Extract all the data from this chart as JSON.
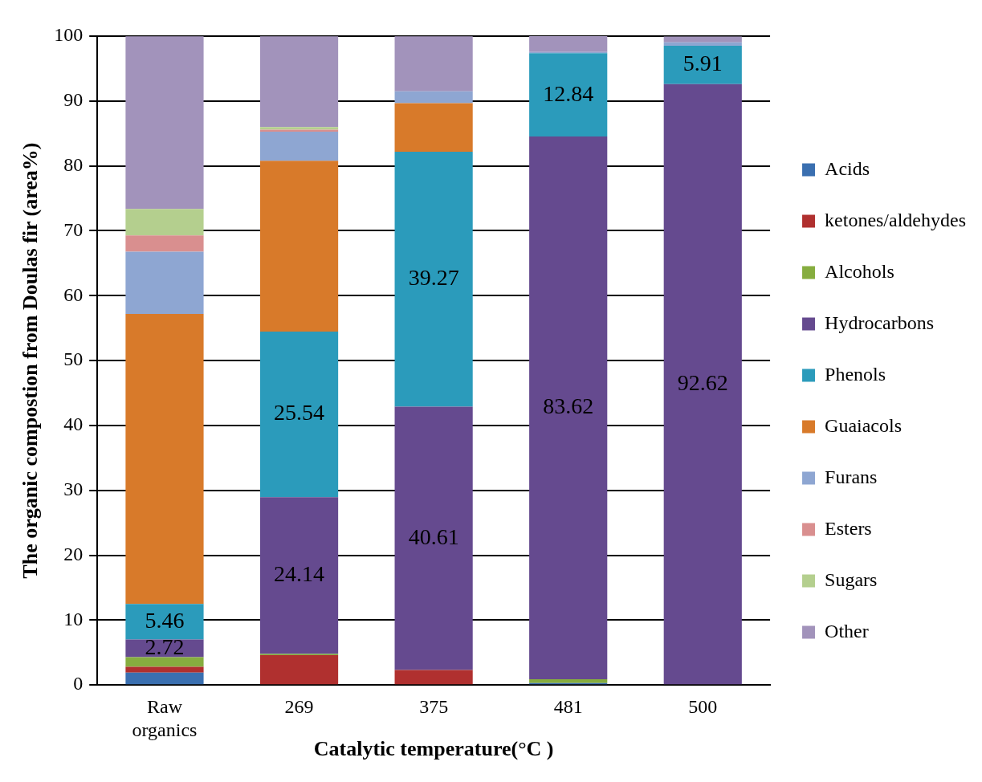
{
  "chart_data": {
    "type": "bar",
    "stacked": true,
    "xlabel": "Catalytic temperature(°C )",
    "ylabel": "The organic compostion from Doulas fir (area%)",
    "categories": [
      "Raw organics",
      "269",
      "375",
      "481",
      "500"
    ],
    "ylim": [
      0,
      100
    ],
    "yticks": [
      0,
      10,
      20,
      30,
      40,
      50,
      60,
      70,
      80,
      90,
      100
    ],
    "grid": "y",
    "legend": "right",
    "series": [
      {
        "name": "Acids",
        "color": "#3a6fb0",
        "values": [
          1.9,
          0,
          0,
          0.3,
          0
        ]
      },
      {
        "name": "ketones/aldehydes",
        "color": "#b0302f",
        "values": [
          0.9,
          4.6,
          2.3,
          0,
          0
        ]
      },
      {
        "name": "Alcohols",
        "color": "#86ad3f",
        "values": [
          1.5,
          0.2,
          0,
          0.6,
          0
        ]
      },
      {
        "name": "Hydrocarbons",
        "color": "#654a8f",
        "values": [
          2.72,
          24.14,
          40.61,
          83.62,
          92.62
        ],
        "value_labels": [
          "2.72",
          "24.14",
          "40.61",
          "83.62",
          "92.62"
        ]
      },
      {
        "name": "Phenols",
        "color": "#2b9bbb",
        "values": [
          5.46,
          25.54,
          39.27,
          12.84,
          5.91
        ],
        "value_labels": [
          "5.46",
          "25.54",
          "39.27",
          "12.84",
          "5.91"
        ]
      },
      {
        "name": "Guaiacols",
        "color": "#d87a2a",
        "values": [
          44.7,
          26.3,
          7.5,
          0,
          0
        ]
      },
      {
        "name": "Furans",
        "color": "#8ea6d2",
        "values": [
          9.6,
          4.5,
          1.8,
          0.2,
          0.5
        ]
      },
      {
        "name": "Esters",
        "color": "#d98f8f",
        "values": [
          2.5,
          0.3,
          0,
          0,
          0
        ]
      },
      {
        "name": "Sugars",
        "color": "#b4cf8e",
        "values": [
          4.1,
          0.4,
          0,
          0,
          0
        ]
      },
      {
        "name": "Other",
        "color": "#a293bb",
        "values": [
          26.6,
          14,
          8.5,
          2.5,
          0.9
        ]
      }
    ]
  }
}
